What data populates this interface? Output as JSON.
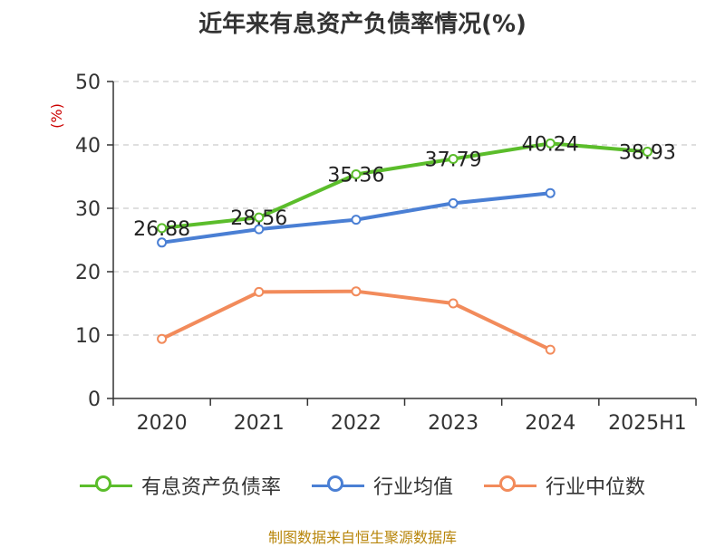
{
  "chart_data": {
    "type": "line",
    "title": "近年来有息资产负债率情况(%)",
    "ylabel": "(%)",
    "categories": [
      "2020",
      "2021",
      "2022",
      "2023",
      "2024",
      "2025H1"
    ],
    "ylim": [
      0,
      50
    ],
    "yticks": [
      0,
      10,
      20,
      30,
      40,
      50
    ],
    "grid": "horizontal dashed",
    "legend_position": "bottom",
    "series": [
      {
        "name": "有息资产负债率",
        "color": "#5bbd2b",
        "values": [
          26.88,
          28.56,
          35.36,
          37.79,
          40.24,
          38.93
        ],
        "labels": [
          "26.88",
          "28.56",
          "35.36",
          "37.79",
          "40.24",
          "38.93"
        ]
      },
      {
        "name": "行业均值",
        "color": "#4a7fd4",
        "values": [
          24.6,
          26.7,
          28.2,
          30.8,
          32.4,
          null
        ]
      },
      {
        "name": "行业中位数",
        "color": "#f28b5b",
        "values": [
          9.4,
          16.8,
          16.9,
          15.0,
          7.7,
          null
        ]
      }
    ]
  },
  "source": "制图数据来自恒生聚源数据库"
}
